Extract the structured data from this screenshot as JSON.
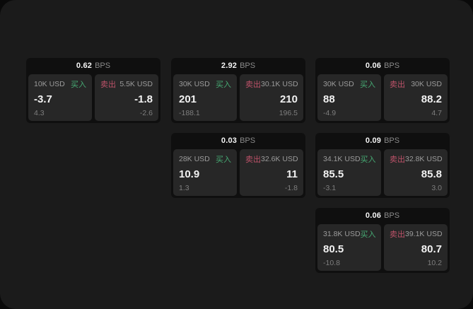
{
  "panel": {
    "background": "#1b1b1b"
  },
  "labels": {
    "bps_unit": "BPS",
    "buy": "买入",
    "sell": "卖出"
  },
  "colors": {
    "buy_accent": "#46a973",
    "sell_accent": "#bd5269"
  },
  "cards": [
    {
      "row": 0,
      "col": 0,
      "bps": "0.62",
      "buy": {
        "amount": "10K USD",
        "price": "-3.7",
        "delta": "4.3"
      },
      "sell": {
        "amount": "5.5K USD",
        "price": "-1.8",
        "delta": "-2.6"
      }
    },
    {
      "row": 0,
      "col": 1,
      "bps": "2.92",
      "buy": {
        "amount": "30K USD",
        "price": "201",
        "delta": "-188.1"
      },
      "sell": {
        "amount": "30.1K USD",
        "price": "210",
        "delta": "196.5"
      }
    },
    {
      "row": 0,
      "col": 2,
      "bps": "0.06",
      "buy": {
        "amount": "30K USD",
        "price": "88",
        "delta": "-4.9"
      },
      "sell": {
        "amount": "30K USD",
        "price": "88.2",
        "delta": "4.7"
      }
    },
    {
      "row": 1,
      "col": 1,
      "bps": "0.03",
      "buy": {
        "amount": "28K USD",
        "price": "10.9",
        "delta": "1.3"
      },
      "sell": {
        "amount": "32.6K USD",
        "price": "11",
        "delta": "-1.8"
      }
    },
    {
      "row": 1,
      "col": 2,
      "bps": "0.09",
      "buy": {
        "amount": "34.1K USD",
        "price": "85.5",
        "delta": "-3.1"
      },
      "sell": {
        "amount": "32.8K USD",
        "price": "85.8",
        "delta": "3.0"
      }
    },
    {
      "row": 2,
      "col": 2,
      "bps": "0.06",
      "buy": {
        "amount": "31.8K USD",
        "price": "80.5",
        "delta": "-10.8"
      },
      "sell": {
        "amount": "39.1K USD",
        "price": "80.7",
        "delta": "10.2"
      }
    }
  ]
}
